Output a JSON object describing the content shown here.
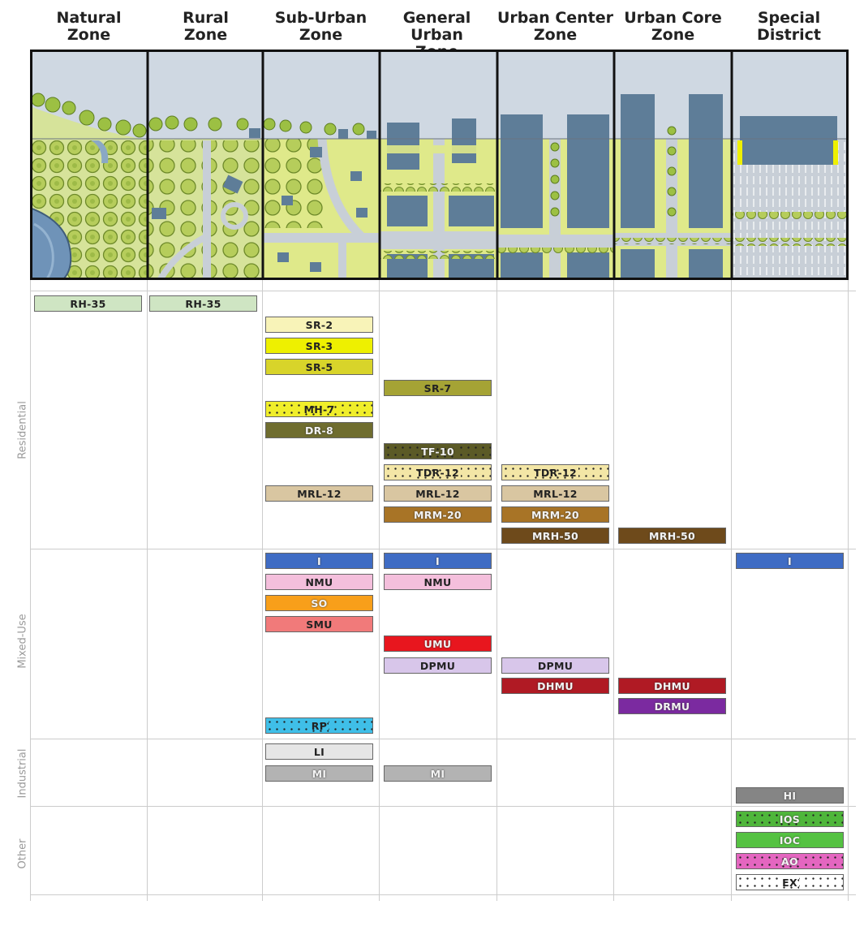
{
  "zones": [
    {
      "line1": "Natural",
      "line2": "Zone"
    },
    {
      "line1": "Rural",
      "line2": "Zone"
    },
    {
      "line1": "Sub-Urban",
      "line2": "Zone"
    },
    {
      "line1": "General Urban",
      "line2": "Zone"
    },
    {
      "line1": "Urban Center",
      "line2": "Zone"
    },
    {
      "line1": "Urban Core",
      "line2": "Zone"
    },
    {
      "line1": "Special",
      "line2": "District"
    }
  ],
  "categories": {
    "residential": "Residential",
    "mixed_use": "Mixed-Use",
    "industrial": "Industrial",
    "other": "Other"
  },
  "colors": {
    "rh": "#cfe5c3",
    "sr2": "#f8f3b8",
    "sr3": "#eef000",
    "sr5": "#d8d42a",
    "sr7": "#a5a335",
    "mh7": "#f0ee2a",
    "dr8": "#6f6d2f",
    "tf10": "#5b5a26",
    "tdr12": "#f3e6a6",
    "mrl12": "#d9c6a1",
    "mrm20": "#a87426",
    "mrh50": "#6e4a1b",
    "inst": "#3f6cc4",
    "nmu": "#f4bfdc",
    "so": "#f89f1a",
    "smu": "#f17a7a",
    "umu": "#e8161e",
    "dpmu": "#d8c6ea",
    "dhmu": "#b01a24",
    "drmu": "#7b2aa0",
    "rp": "#3fbfe8",
    "li": "#e6e6e6",
    "mi": "#b3b3b3",
    "hi": "#858585",
    "ios": "#4fb63b",
    "ioc": "#55c242",
    "ao": "#e466c0",
    "ex": "#ffffff"
  },
  "chips": {
    "natural_rh35": "RH-35",
    "rural_rh35": "RH-35",
    "su_sr2": "SR-2",
    "su_sr3": "SR-3",
    "su_sr5": "SR-5",
    "su_mh7": "MH-7",
    "su_dr8": "DR-8",
    "su_mrl12": "MRL-12",
    "su_i": "I",
    "su_nmu": "NMU",
    "su_so": "SO",
    "su_smu": "SMU",
    "su_rp": "RP",
    "su_li": "LI",
    "su_mi": "MI",
    "gu_sr7": "SR-7",
    "gu_tf10": "TF-10",
    "gu_tdr12": "TDR-12",
    "gu_mrl12": "MRL-12",
    "gu_mrm20": "MRM-20",
    "gu_i": "I",
    "gu_nmu": "NMU",
    "gu_umu": "UMU",
    "gu_dpmu": "DPMU",
    "gu_mi": "MI",
    "uc_tdr12": "TDR-12",
    "uc_mrl12": "MRL-12",
    "uc_mrm20": "MRM-20",
    "uc_mrh50": "MRH-50",
    "uc_dpmu": "DPMU",
    "uc_dhmu": "DHMU",
    "core_mrh50": "MRH-50",
    "core_dhmu": "DHMU",
    "core_drmu": "DRMU",
    "sd_i": "I",
    "sd_hi": "HI",
    "sd_ios": "IOS",
    "sd_ioc": "IOC",
    "sd_ao": "AO",
    "sd_ex": "EX"
  }
}
